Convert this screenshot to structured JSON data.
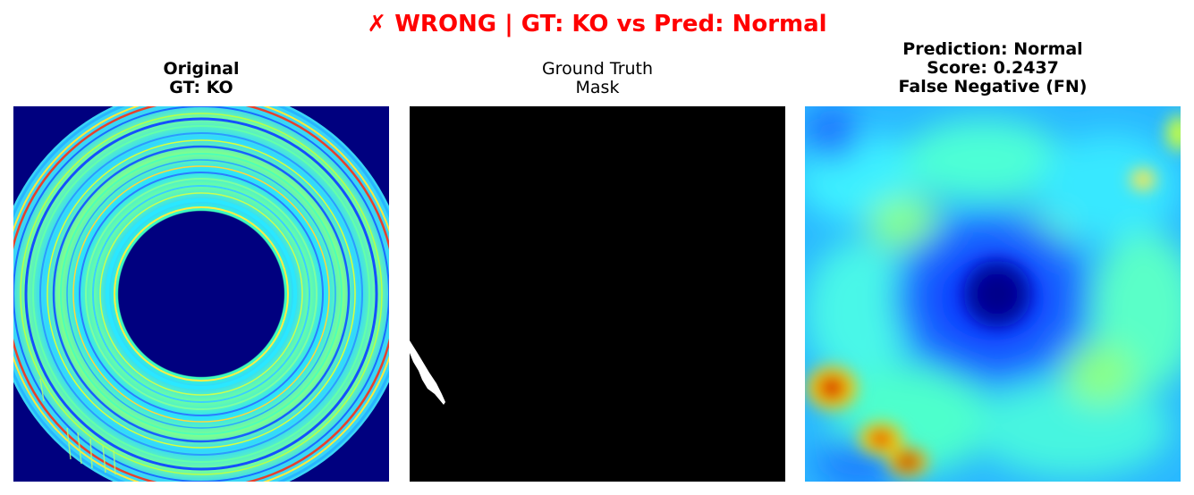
{
  "figure": {
    "suptitle": "✗ WRONG | GT: KO vs Pred: Normal",
    "suptitle_color": "#ff0000"
  },
  "panels": [
    {
      "title_lines": [
        "Original",
        "GT: KO"
      ],
      "title_bold": true,
      "image": "ring-scan-jet-colormap"
    },
    {
      "title_lines": [
        "Ground Truth",
        "Mask"
      ],
      "title_bold": false,
      "image": "binary-mask-white-defect"
    },
    {
      "title_lines": [
        "Prediction: Normal",
        "Score: 0.2437",
        "False Negative (FN)"
      ],
      "title_bold": true,
      "image": "anomaly-heatmap-jet"
    }
  ],
  "colors": {
    "jet_dark_blue": "#00007f",
    "jet_cyan": "#31e5ff",
    "jet_green": "#7dffaa",
    "jet_red": "#e00000",
    "mask_black": "#000000",
    "mask_white": "#ffffff"
  }
}
